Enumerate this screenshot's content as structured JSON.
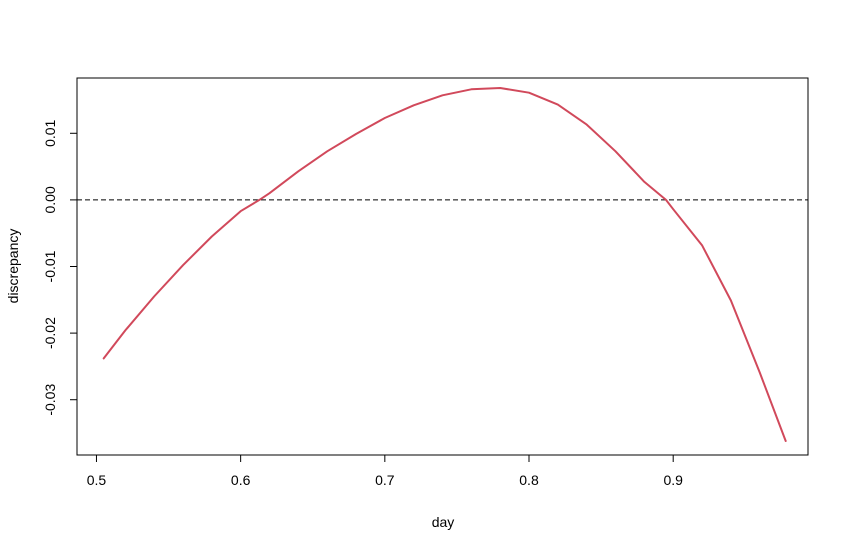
{
  "chart_data": {
    "type": "line",
    "title": "",
    "xlabel": "day",
    "ylabel": "discrepancy",
    "xlim": [
      0.4865,
      0.9935
    ],
    "ylim": [
      -0.0383,
      0.0183
    ],
    "x_ticks": [
      0.5,
      0.6,
      0.7,
      0.8,
      0.9
    ],
    "x_tick_labels": [
      "0.5",
      "0.6",
      "0.7",
      "0.8",
      "0.9"
    ],
    "y_ticks": [
      -0.03,
      -0.02,
      -0.01,
      0.0,
      0.01
    ],
    "y_tick_labels": [
      "-0.03",
      "-0.02",
      "-0.01",
      "0.00",
      "0.01"
    ],
    "reference_line": {
      "y": 0.0,
      "style": "dashed",
      "color": "#000000"
    },
    "grid": false,
    "series": [
      {
        "color": "#d1495b",
        "x": [
          0.505,
          0.52,
          0.54,
          0.56,
          0.58,
          0.6,
          0.613,
          0.62,
          0.64,
          0.66,
          0.68,
          0.7,
          0.72,
          0.74,
          0.76,
          0.78,
          0.8,
          0.82,
          0.84,
          0.86,
          0.88,
          0.895,
          0.9,
          0.92,
          0.94,
          0.96,
          0.978
        ],
        "y": [
          -0.0238,
          -0.0196,
          -0.0145,
          -0.0098,
          -0.0055,
          -0.0017,
          0.0,
          0.001,
          0.0043,
          0.0073,
          0.0099,
          0.0123,
          0.0142,
          0.0157,
          0.0166,
          0.0168,
          0.0161,
          0.0143,
          0.0113,
          0.0073,
          0.0027,
          0.0,
          -0.0014,
          -0.0068,
          -0.0151,
          -0.0259,
          -0.0362
        ]
      }
    ]
  }
}
